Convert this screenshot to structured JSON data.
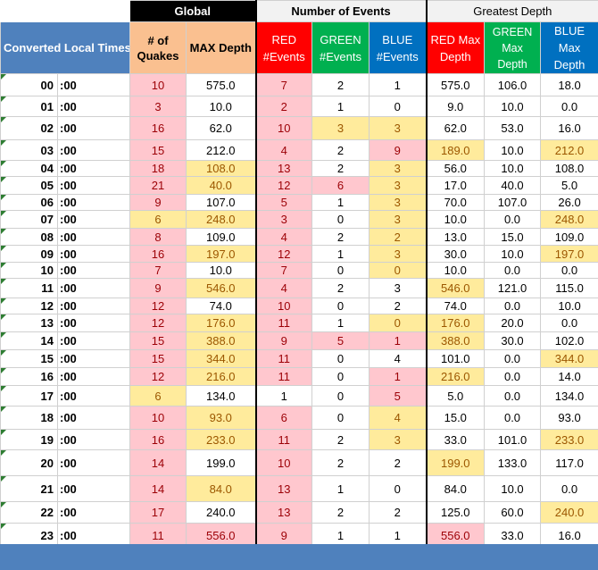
{
  "groups": {
    "global": "Global",
    "events": "Number of Events",
    "depth": "Greatest Depth"
  },
  "headers": {
    "times": "Converted Local Times",
    "quakes": "# of Quakes",
    "max_depth": "MAX Depth",
    "red_events": "RED #Events",
    "green_events": "GREEN #Events",
    "blue_events": "BLUE #Events",
    "red_max": "RED Max Depth",
    "green_max": "GREEN Max Depth",
    "blue_max": "BLUE Max Depth"
  },
  "colors": {
    "pink_fill": "#ffc7ce",
    "yellow_fill": "#ffeb9c",
    "red_header": "#ff0000",
    "green_header": "#00b050",
    "blue_header": "#0070c0",
    "times_header": "#4f81bd",
    "quakes_header": "#fac090"
  },
  "rows": [
    {
      "hh": "00",
      "mm": ":00",
      "quakes": "10",
      "max": "575.0",
      "red": "7",
      "green": "2",
      "blue": "1",
      "redmax": "575.0",
      "greenmax": "106.0",
      "bluemax": "18.0"
    },
    {
      "hh": "01",
      "mm": ":00",
      "quakes": "3",
      "max": "10.0",
      "red": "2",
      "green": "1",
      "blue": "0",
      "redmax": "9.0",
      "greenmax": "10.0",
      "bluemax": "0.0"
    },
    {
      "hh": "02",
      "mm": ":00",
      "quakes": "16",
      "max": "62.0",
      "red": "10",
      "green": "3",
      "blue": "3",
      "redmax": "62.0",
      "greenmax": "53.0",
      "bluemax": "16.0"
    },
    {
      "hh": "03",
      "mm": ":00",
      "quakes": "15",
      "max": "212.0",
      "red": "4",
      "green": "2",
      "blue": "9",
      "redmax": "189.0",
      "greenmax": "10.0",
      "bluemax": "212.0"
    },
    {
      "hh": "04",
      "mm": ":00",
      "quakes": "18",
      "max": "108.0",
      "red": "13",
      "green": "2",
      "blue": "3",
      "redmax": "56.0",
      "greenmax": "10.0",
      "bluemax": "108.0"
    },
    {
      "hh": "05",
      "mm": ":00",
      "quakes": "21",
      "max": "40.0",
      "red": "12",
      "green": "6",
      "blue": "3",
      "redmax": "17.0",
      "greenmax": "40.0",
      "bluemax": "5.0"
    },
    {
      "hh": "06",
      "mm": ":00",
      "quakes": "9",
      "max": "107.0",
      "red": "5",
      "green": "1",
      "blue": "3",
      "redmax": "70.0",
      "greenmax": "107.0",
      "bluemax": "26.0"
    },
    {
      "hh": "07",
      "mm": ":00",
      "quakes": "6",
      "max": "248.0",
      "red": "3",
      "green": "0",
      "blue": "3",
      "redmax": "10.0",
      "greenmax": "0.0",
      "bluemax": "248.0"
    },
    {
      "hh": "08",
      "mm": ":00",
      "quakes": "8",
      "max": "109.0",
      "red": "4",
      "green": "2",
      "blue": "2",
      "redmax": "13.0",
      "greenmax": "15.0",
      "bluemax": "109.0"
    },
    {
      "hh": "09",
      "mm": ":00",
      "quakes": "16",
      "max": "197.0",
      "red": "12",
      "green": "1",
      "blue": "3",
      "redmax": "30.0",
      "greenmax": "10.0",
      "bluemax": "197.0"
    },
    {
      "hh": "10",
      "mm": ":00",
      "quakes": "7",
      "max": "10.0",
      "red": "7",
      "green": "0",
      "blue": "0",
      "redmax": "10.0",
      "greenmax": "0.0",
      "bluemax": "0.0"
    },
    {
      "hh": "11",
      "mm": ":00",
      "quakes": "9",
      "max": "546.0",
      "red": "4",
      "green": "2",
      "blue": "3",
      "redmax": "546.0",
      "greenmax": "121.0",
      "bluemax": "115.0"
    },
    {
      "hh": "12",
      "mm": ":00",
      "quakes": "12",
      "max": "74.0",
      "red": "10",
      "green": "0",
      "blue": "2",
      "redmax": "74.0",
      "greenmax": "0.0",
      "bluemax": "10.0"
    },
    {
      "hh": "13",
      "mm": ":00",
      "quakes": "12",
      "max": "176.0",
      "red": "11",
      "green": "1",
      "blue": "0",
      "redmax": "176.0",
      "greenmax": "20.0",
      "bluemax": "0.0"
    },
    {
      "hh": "14",
      "mm": ":00",
      "quakes": "15",
      "max": "388.0",
      "red": "9",
      "green": "5",
      "blue": "1",
      "redmax": "388.0",
      "greenmax": "30.0",
      "bluemax": "102.0"
    },
    {
      "hh": "15",
      "mm": ":00",
      "quakes": "15",
      "max": "344.0",
      "red": "11",
      "green": "0",
      "blue": "4",
      "redmax": "101.0",
      "greenmax": "0.0",
      "bluemax": "344.0"
    },
    {
      "hh": "16",
      "mm": ":00",
      "quakes": "12",
      "max": "216.0",
      "red": "11",
      "green": "0",
      "blue": "1",
      "redmax": "216.0",
      "greenmax": "0.0",
      "bluemax": "14.0"
    },
    {
      "hh": "17",
      "mm": ":00",
      "quakes": "6",
      "max": "134.0",
      "red": "1",
      "green": "0",
      "blue": "5",
      "redmax": "5.0",
      "greenmax": "0.0",
      "bluemax": "134.0"
    },
    {
      "hh": "18",
      "mm": ":00",
      "quakes": "10",
      "max": "93.0",
      "red": "6",
      "green": "0",
      "blue": "4",
      "redmax": "15.0",
      "greenmax": "0.0",
      "bluemax": "93.0"
    },
    {
      "hh": "19",
      "mm": ":00",
      "quakes": "16",
      "max": "233.0",
      "red": "11",
      "green": "2",
      "blue": "3",
      "redmax": "33.0",
      "greenmax": "101.0",
      "bluemax": "233.0"
    },
    {
      "hh": "20",
      "mm": ":00",
      "quakes": "14",
      "max": "199.0",
      "red": "10",
      "green": "2",
      "blue": "2",
      "redmax": "199.0",
      "greenmax": "133.0",
      "bluemax": "117.0"
    },
    {
      "hh": "21",
      "mm": ":00",
      "quakes": "14",
      "max": "84.0",
      "red": "13",
      "green": "1",
      "blue": "0",
      "redmax": "84.0",
      "greenmax": "10.0",
      "bluemax": "0.0"
    },
    {
      "hh": "22",
      "mm": ":00",
      "quakes": "17",
      "max": "240.0",
      "red": "13",
      "green": "2",
      "blue": "2",
      "redmax": "125.0",
      "greenmax": "60.0",
      "bluemax": "240.0"
    },
    {
      "hh": "23",
      "mm": ":00",
      "quakes": "11",
      "max": "556.0",
      "red": "9",
      "green": "1",
      "blue": "1",
      "redmax": "556.0",
      "greenmax": "33.0",
      "bluemax": "16.0"
    }
  ]
}
